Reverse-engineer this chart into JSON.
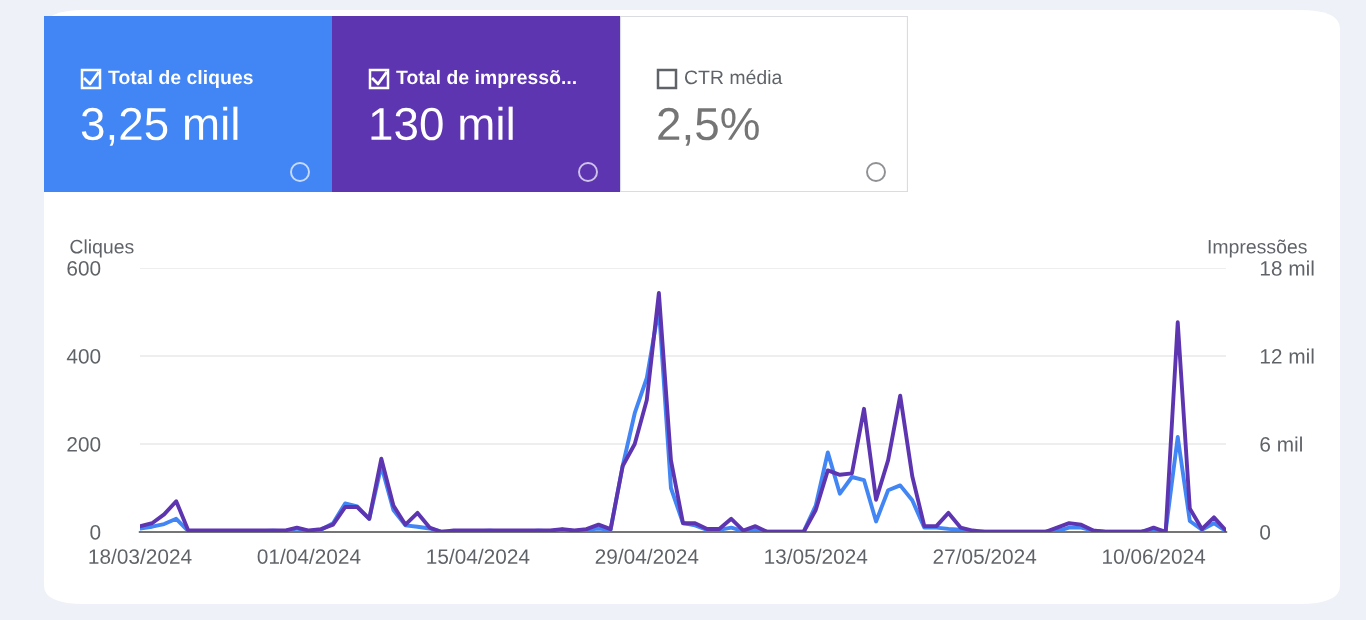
{
  "chart_data": [
    {
      "type": "other",
      "title": "Total de cliques",
      "subtitle": "3,25 mil",
      "color": "#4285f4"
    },
    {
      "type": "other",
      "title": "Total de impressõ...",
      "subtitle": "130 mil",
      "color": "#5e35b1"
    },
    {
      "type": "other",
      "title": "CTR média",
      "subtitle": "2,5%",
      "color": "#ffffff"
    },
    {
      "type": "line",
      "ylabel": "Cliques",
      "y2label": "Impressões",
      "x": [
        "2024-03-18",
        "2024-03-19",
        "2024-03-20",
        "2024-03-21",
        "2024-03-22",
        "2024-03-23",
        "2024-03-24",
        "2024-03-25",
        "2024-03-26",
        "2024-03-27",
        "2024-03-28",
        "2024-03-29",
        "2024-03-30",
        "2024-03-31",
        "2024-04-01",
        "2024-04-02",
        "2024-04-03",
        "2024-04-04",
        "2024-04-05",
        "2024-04-06",
        "2024-04-07",
        "2024-04-08",
        "2024-04-09",
        "2024-04-10",
        "2024-04-11",
        "2024-04-12",
        "2024-04-13",
        "2024-04-14",
        "2024-04-15",
        "2024-04-16",
        "2024-04-17",
        "2024-04-18",
        "2024-04-19",
        "2024-04-20",
        "2024-04-21",
        "2024-04-22",
        "2024-04-23",
        "2024-04-24",
        "2024-04-25",
        "2024-04-26",
        "2024-04-27",
        "2024-04-28",
        "2024-04-29",
        "2024-04-30",
        "2024-05-01",
        "2024-05-02",
        "2024-05-03",
        "2024-05-04",
        "2024-05-05",
        "2024-05-06",
        "2024-05-07",
        "2024-05-08",
        "2024-05-09",
        "2024-05-10",
        "2024-05-11",
        "2024-05-12",
        "2024-05-13",
        "2024-05-14",
        "2024-05-15",
        "2024-05-16",
        "2024-05-17",
        "2024-05-18",
        "2024-05-19",
        "2024-05-20",
        "2024-05-21",
        "2024-05-22",
        "2024-05-23",
        "2024-05-24",
        "2024-05-25",
        "2024-05-26",
        "2024-05-27",
        "2024-05-28",
        "2024-05-29",
        "2024-05-30",
        "2024-05-31",
        "2024-06-01",
        "2024-06-02",
        "2024-06-03",
        "2024-06-04",
        "2024-06-05",
        "2024-06-06",
        "2024-06-07",
        "2024-06-08",
        "2024-06-09",
        "2024-06-10",
        "2024-06-11",
        "2024-06-12",
        "2024-06-13",
        "2024-06-14",
        "2024-06-15",
        "2024-06-16"
      ],
      "series": [
        {
          "color": "#5e35b1",
          "axis": "y2",
          "values": [
            0.4,
            0.6,
            1.2,
            2.1,
            0.1,
            0.1,
            0.1,
            0.1,
            0.1,
            0.1,
            0.1,
            0.1,
            0.1,
            0.3,
            0.1,
            0.2,
            0.5,
            1.7,
            1.7,
            0.9,
            5,
            1.8,
            0.5,
            1.3,
            0.3,
            0,
            0.1,
            0.1,
            0.1,
            0.1,
            0.1,
            0.1,
            0.1,
            0.1,
            0.1,
            0.2,
            0.1,
            0.2,
            0.5,
            0.2,
            4.5,
            6,
            9,
            16.3,
            4.9,
            0.6,
            0.6,
            0.2,
            0.2,
            0.9,
            0.1,
            0.4,
            0,
            0,
            0,
            0,
            1.5,
            4.2,
            3.9,
            4,
            8.4,
            2.2,
            4.9,
            9.3,
            3.8,
            0.4,
            0.4,
            1.3,
            0.3,
            0.1,
            0,
            0,
            0,
            0,
            0,
            0,
            0.3,
            0.6,
            0.5,
            0.1,
            0,
            0,
            0,
            0,
            0.3,
            0,
            14.3,
            1.6,
            0.2,
            1,
            0.1
          ]
        },
        {
          "color": "#4285f4",
          "values": [
            8,
            12,
            18,
            30,
            2,
            2,
            1,
            1,
            1,
            2,
            2,
            3,
            2,
            8,
            2,
            5,
            20,
            65,
            58,
            30,
            150,
            50,
            15,
            12,
            8,
            1,
            1,
            1,
            2,
            3,
            1,
            1,
            1,
            3,
            2,
            5,
            2,
            5,
            8,
            5,
            150,
            270,
            350,
            510,
            100,
            20,
            15,
            5,
            5,
            10,
            2,
            5,
            1,
            1,
            1,
            1,
            60,
            181,
            87,
            125,
            118,
            24,
            95,
            106,
            72,
            10,
            10,
            7,
            5,
            1,
            1,
            1,
            1,
            1,
            1,
            1,
            2,
            10,
            10,
            3,
            1,
            1,
            1,
            2,
            5,
            2,
            216,
            25,
            5,
            20,
            2
          ]
        }
      ],
      "xlim": [
        "2024-03-18",
        "2024-06-16"
      ],
      "xticks": [
        {
          "value": "2024-03-18",
          "label": "18/03/2024"
        },
        {
          "value": "2024-04-01",
          "label": "01/04/2024"
        },
        {
          "value": "2024-04-15",
          "label": "15/04/2024"
        },
        {
          "value": "2024-04-29",
          "label": "29/04/2024"
        },
        {
          "value": "2024-05-13",
          "label": "13/05/2024"
        },
        {
          "value": "2024-05-27",
          "label": "27/05/2024"
        },
        {
          "value": "2024-06-10",
          "label": "10/06/2024"
        }
      ],
      "ylim": [
        0,
        600
      ],
      "yticks": [
        0,
        200,
        400,
        600
      ],
      "y2lim": [
        0,
        18
      ],
      "y2ticks": [
        0,
        {
          "value": 6,
          "label": "6 mil"
        },
        {
          "value": 12,
          "label": "12 mil"
        },
        {
          "value": 18,
          "label": "18 mil"
        }
      ],
      "grid": "y",
      "marker": "none",
      "line_style": "solid"
    }
  ]
}
